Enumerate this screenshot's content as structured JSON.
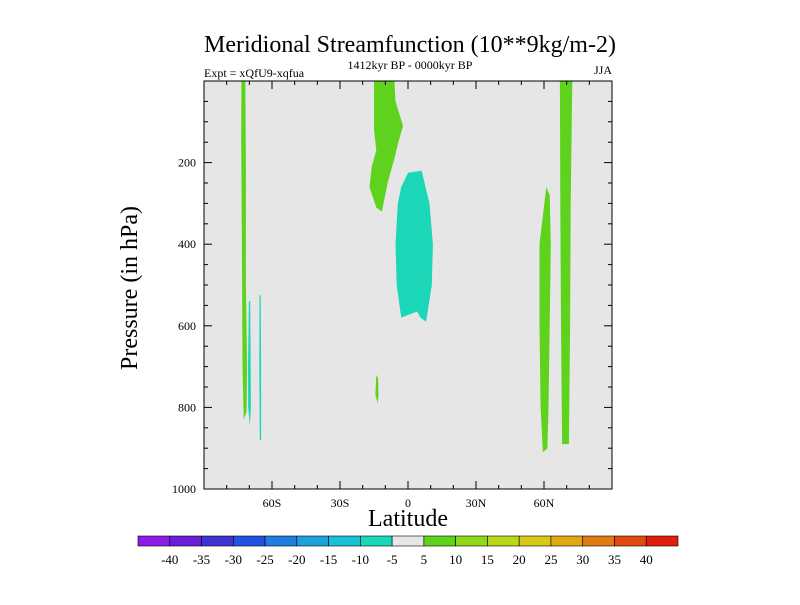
{
  "chart_data": {
    "type": "heatmap",
    "title": "Meridional Streamfunction (10**9kg/m-2)",
    "subtitle_left": "Expt = xQfU9-xqfua",
    "subtitle_center": "1412kyr BP - 0000kyr BP",
    "subtitle_right": "JJA",
    "xlabel": "Latitude",
    "ylabel": "Pressure (in hPa)",
    "xlim": [
      -90,
      90
    ],
    "ylim": [
      1000,
      0
    ],
    "x_ticks": [
      {
        "value": -60,
        "label": "60S"
      },
      {
        "value": -30,
        "label": "30S"
      },
      {
        "value": 0,
        "label": "0"
      },
      {
        "value": 30,
        "label": "30N"
      },
      {
        "value": 60,
        "label": "60N"
      }
    ],
    "y_ticks": [
      {
        "value": 200,
        "label": "200"
      },
      {
        "value": 400,
        "label": "400"
      },
      {
        "value": 600,
        "label": "600"
      },
      {
        "value": 800,
        "label": "800"
      },
      {
        "value": 1000,
        "label": "1000"
      }
    ],
    "background_color": "#e6e6e6",
    "colorbar": {
      "labels": [
        "-40",
        "-35",
        "-30",
        "-25",
        "-20",
        "-15",
        "-10",
        "-5",
        "5",
        "10",
        "15",
        "20",
        "25",
        "30",
        "35",
        "40"
      ],
      "colors": [
        "#8c1de6",
        "#6a1fd6",
        "#3f33d2",
        "#2351e0",
        "#1f7ee0",
        "#1ea0dc",
        "#1cc0d4",
        "#1cd6b8",
        "#e6e6e6",
        "#5fd21e",
        "#8fd81c",
        "#b9d61a",
        "#d8c818",
        "#e0a814",
        "#e07a12",
        "#e04a10",
        "#e01e0e"
      ]
    },
    "regions": [
      {
        "name": "sh-polar-positive",
        "value": 5,
        "color": "#5fd21e",
        "polygon": [
          [
            -73.5,
            0
          ],
          [
            -71.8,
            0
          ],
          [
            -71.5,
            200
          ],
          [
            -71.5,
            500
          ],
          [
            -71,
            700
          ],
          [
            -71.2,
            810
          ],
          [
            -72.5,
            830
          ],
          [
            -73,
            700
          ],
          [
            -73.3,
            400
          ],
          [
            -73.6,
            150
          ]
        ]
      },
      {
        "name": "sh-polar-negative-1",
        "value": -5,
        "color": "#1cd6b8",
        "polygon": [
          [
            -70.2,
            540
          ],
          [
            -69.6,
            540
          ],
          [
            -69.4,
            700
          ],
          [
            -69.3,
            800
          ],
          [
            -69.8,
            845
          ],
          [
            -70.5,
            800
          ],
          [
            -70.6,
            700
          ]
        ]
      },
      {
        "name": "sh-polar-negative-2",
        "value": -5,
        "color": "#1cd6b8",
        "polygon": [
          [
            -65.5,
            525
          ],
          [
            -65,
            525
          ],
          [
            -64.8,
            700
          ],
          [
            -64.8,
            880
          ],
          [
            -65.4,
            880
          ],
          [
            -65.6,
            700
          ]
        ]
      },
      {
        "name": "tropical-upper-positive",
        "value": 5,
        "color": "#5fd21e",
        "polygon": [
          [
            -15,
            0
          ],
          [
            -6,
            0
          ],
          [
            -5.5,
            50
          ],
          [
            -2.2,
            110
          ],
          [
            -4,
            145
          ],
          [
            -6,
            190
          ],
          [
            -9,
            250
          ],
          [
            -11.5,
            320
          ],
          [
            -14,
            310
          ],
          [
            -17,
            260
          ],
          [
            -16,
            210
          ],
          [
            -14,
            170
          ],
          [
            -15,
            120
          ]
        ]
      },
      {
        "name": "tropical-negative",
        "value": -5,
        "color": "#1cd6b8",
        "polygon": [
          [
            0,
            225
          ],
          [
            6,
            220
          ],
          [
            9.5,
            300
          ],
          [
            11,
            400
          ],
          [
            10.5,
            500
          ],
          [
            8,
            590
          ],
          [
            5.5,
            580
          ],
          [
            4,
            565
          ],
          [
            -3,
            580
          ],
          [
            -5,
            500
          ],
          [
            -5.5,
            400
          ],
          [
            -4.5,
            300
          ],
          [
            -3,
            260
          ]
        ]
      },
      {
        "name": "tropical-lower-positive-spot",
        "value": 5,
        "color": "#5fd21e",
        "polygon": [
          [
            -14,
            720
          ],
          [
            -13.2,
            730
          ],
          [
            -13,
            770
          ],
          [
            -13.3,
            790
          ],
          [
            -14.4,
            770
          ]
        ]
      },
      {
        "name": "nh-positive-1",
        "value": 5,
        "color": "#5fd21e",
        "polygon": [
          [
            61,
            260
          ],
          [
            62.5,
            280
          ],
          [
            63,
            400
          ],
          [
            62.5,
            600
          ],
          [
            62,
            800
          ],
          [
            61.5,
            900
          ],
          [
            59.5,
            910
          ],
          [
            58.5,
            800
          ],
          [
            58,
            600
          ],
          [
            58,
            400
          ]
        ]
      },
      {
        "name": "nh-positive-2",
        "value": 5,
        "color": "#5fd21e",
        "polygon": [
          [
            67,
            0
          ],
          [
            72.5,
            0
          ],
          [
            71.8,
            300
          ],
          [
            71.5,
            600
          ],
          [
            71,
            890
          ],
          [
            68,
            890
          ],
          [
            67.5,
            600
          ],
          [
            67.2,
            300
          ]
        ]
      }
    ]
  }
}
